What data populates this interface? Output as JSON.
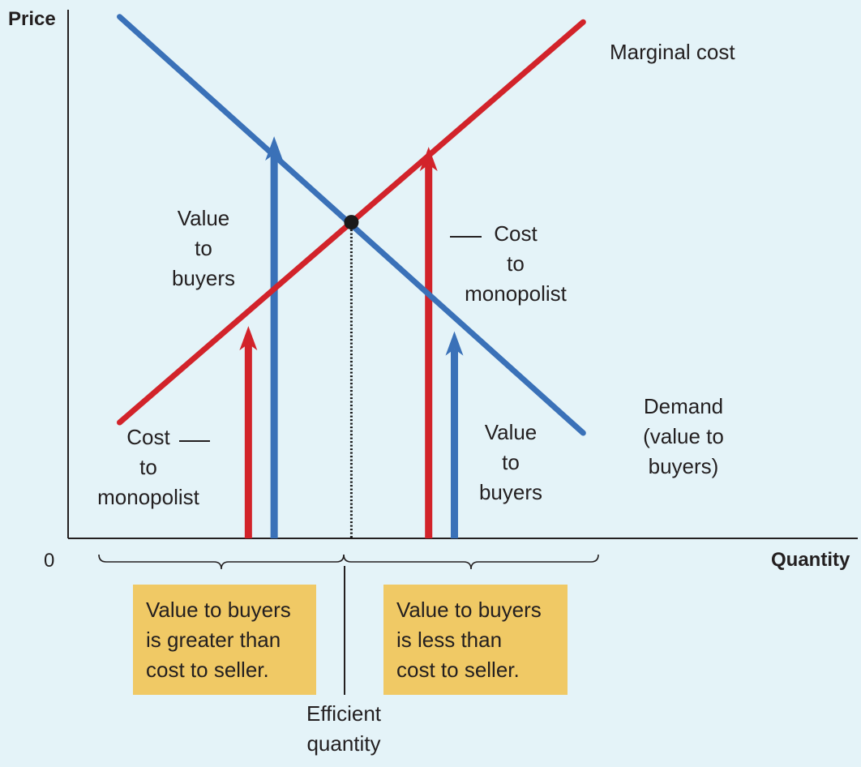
{
  "chart_data": {
    "type": "line",
    "xlabel": "Quantity",
    "ylabel": "Price",
    "origin_label": "0",
    "xlim": [
      0,
      10
    ],
    "ylim": [
      0,
      10
    ],
    "series": [
      {
        "name": "Marginal cost",
        "color": "#d2232a",
        "x": [
          1,
          10
        ],
        "y": [
          2.2,
          9.8
        ]
      },
      {
        "name": "Demand (value to buyers)",
        "color": "#3a71b8",
        "x": [
          1,
          10
        ],
        "y": [
          9.9,
          2.0
        ]
      }
    ],
    "efficient_point": {
      "x": 5.5,
      "y": 6.0,
      "label": "Efficient quantity"
    },
    "arrows": [
      {
        "x": 3.5,
        "y": 4.0,
        "color": "#d2232a",
        "meaning": "Cost to monopolist"
      },
      {
        "x": 4.0,
        "y": 7.6,
        "color": "#3a71b8",
        "meaning": "Value to buyers"
      },
      {
        "x": 7.0,
        "y": 7.4,
        "color": "#d2232a",
        "meaning": "Cost to monopolist"
      },
      {
        "x": 7.5,
        "y": 3.9,
        "color": "#3a71b8",
        "meaning": "Value to buyers"
      }
    ]
  },
  "labels": {
    "marginal_cost": "Marginal cost",
    "demand_line1": "Demand",
    "demand_line2": "(value to buyers)",
    "value_left": [
      "Value",
      "to",
      "buyers"
    ],
    "value_right": [
      "Value",
      "to",
      "buyers"
    ],
    "cost_left": [
      "Cost",
      "to",
      "monopolist"
    ],
    "cost_right": [
      "Cost",
      "to",
      "monopolist"
    ],
    "efficient": [
      "Efficient",
      "quantity"
    ]
  },
  "notes": {
    "left": [
      "Value to buyers",
      "is greater than",
      "cost to seller."
    ],
    "right": [
      "Value to buyers",
      "is less than",
      "cost to seller."
    ]
  },
  "colors": {
    "background": "#e4f3f8",
    "note": "#f0c965",
    "axis": "#231f20"
  }
}
